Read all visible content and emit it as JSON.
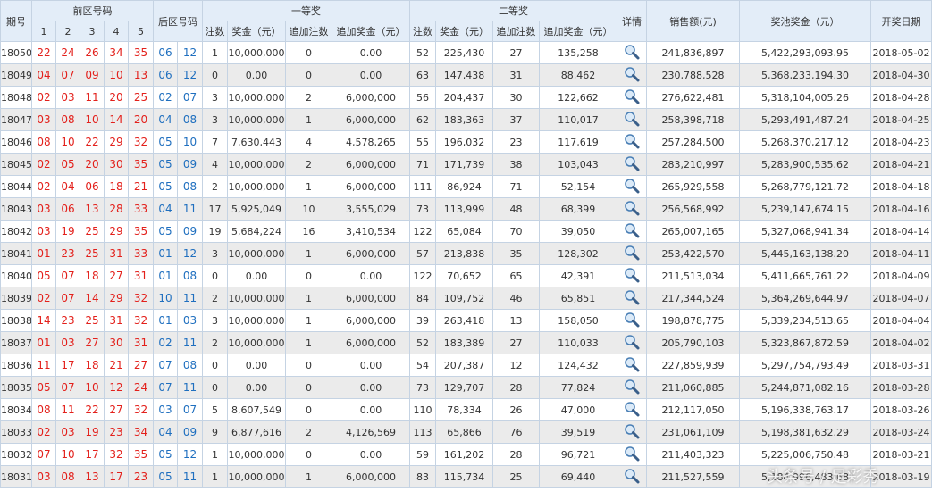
{
  "header": {
    "issue": "期号",
    "front": "前区号码",
    "front_cols": [
      "1",
      "2",
      "3",
      "4",
      "5"
    ],
    "back": "后区号码",
    "first": "一等奖",
    "second": "二等奖",
    "sub": [
      "注数",
      "奖金（元）",
      "追加注数",
      "追加奖金（元）"
    ],
    "detail": "详情",
    "sales": "销售额(元)",
    "pool": "奖池奖金（元）",
    "date": "开奖日期"
  },
  "rows": [
    {
      "issue": "18050",
      "front": [
        "22",
        "24",
        "26",
        "34",
        "35"
      ],
      "back": [
        "06",
        "12"
      ],
      "first": [
        "1",
        "10,000,000",
        "0",
        "0.00"
      ],
      "second": [
        "52",
        "225,430",
        "27",
        "135,258"
      ],
      "sales": "241,836,897",
      "pool": "5,422,293,093.95",
      "date": "2018-05-02"
    },
    {
      "issue": "18049",
      "front": [
        "04",
        "07",
        "09",
        "10",
        "13"
      ],
      "back": [
        "06",
        "12"
      ],
      "first": [
        "0",
        "0.00",
        "0",
        "0.00"
      ],
      "second": [
        "63",
        "147,438",
        "31",
        "88,462"
      ],
      "sales": "230,788,528",
      "pool": "5,368,233,194.30",
      "date": "2018-04-30"
    },
    {
      "issue": "18048",
      "front": [
        "02",
        "03",
        "11",
        "20",
        "25"
      ],
      "back": [
        "02",
        "07"
      ],
      "first": [
        "3",
        "10,000,000",
        "2",
        "6,000,000"
      ],
      "second": [
        "56",
        "204,437",
        "30",
        "122,662"
      ],
      "sales": "276,622,481",
      "pool": "5,318,104,005.26",
      "date": "2018-04-28"
    },
    {
      "issue": "18047",
      "front": [
        "03",
        "08",
        "10",
        "14",
        "20"
      ],
      "back": [
        "04",
        "08"
      ],
      "first": [
        "3",
        "10,000,000",
        "1",
        "6,000,000"
      ],
      "second": [
        "62",
        "183,363",
        "37",
        "110,017"
      ],
      "sales": "258,398,718",
      "pool": "5,293,491,487.24",
      "date": "2018-04-25"
    },
    {
      "issue": "18046",
      "front": [
        "08",
        "10",
        "22",
        "29",
        "32"
      ],
      "back": [
        "05",
        "10"
      ],
      "first": [
        "7",
        "7,630,443",
        "4",
        "4,578,265"
      ],
      "second": [
        "55",
        "196,032",
        "23",
        "117,619"
      ],
      "sales": "257,284,500",
      "pool": "5,268,370,217.12",
      "date": "2018-04-23"
    },
    {
      "issue": "18045",
      "front": [
        "02",
        "05",
        "20",
        "30",
        "35"
      ],
      "back": [
        "05",
        "09"
      ],
      "first": [
        "4",
        "10,000,000",
        "2",
        "6,000,000"
      ],
      "second": [
        "71",
        "171,739",
        "38",
        "103,043"
      ],
      "sales": "283,210,997",
      "pool": "5,283,900,535.62",
      "date": "2018-04-21"
    },
    {
      "issue": "18044",
      "front": [
        "02",
        "04",
        "06",
        "18",
        "21"
      ],
      "back": [
        "05",
        "08"
      ],
      "first": [
        "2",
        "10,000,000",
        "1",
        "6,000,000"
      ],
      "second": [
        "111",
        "86,924",
        "71",
        "52,154"
      ],
      "sales": "265,929,558",
      "pool": "5,268,779,121.72",
      "date": "2018-04-18"
    },
    {
      "issue": "18043",
      "front": [
        "03",
        "06",
        "13",
        "28",
        "33"
      ],
      "back": [
        "04",
        "11"
      ],
      "first": [
        "17",
        "5,925,049",
        "10",
        "3,555,029"
      ],
      "second": [
        "73",
        "113,999",
        "48",
        "68,399"
      ],
      "sales": "256,568,992",
      "pool": "5,239,147,674.15",
      "date": "2018-04-16"
    },
    {
      "issue": "18042",
      "front": [
        "03",
        "19",
        "25",
        "29",
        "35"
      ],
      "back": [
        "05",
        "09"
      ],
      "first": [
        "19",
        "5,684,224",
        "16",
        "3,410,534"
      ],
      "second": [
        "122",
        "65,084",
        "70",
        "39,050"
      ],
      "sales": "265,007,165",
      "pool": "5,327,068,941.34",
      "date": "2018-04-14"
    },
    {
      "issue": "18041",
      "front": [
        "01",
        "23",
        "25",
        "31",
        "33"
      ],
      "back": [
        "01",
        "12"
      ],
      "first": [
        "3",
        "10,000,000",
        "1",
        "6,000,000"
      ],
      "second": [
        "57",
        "213,838",
        "35",
        "128,302"
      ],
      "sales": "253,422,570",
      "pool": "5,445,163,138.20",
      "date": "2018-04-11"
    },
    {
      "issue": "18040",
      "front": [
        "05",
        "07",
        "18",
        "27",
        "31"
      ],
      "back": [
        "01",
        "08"
      ],
      "first": [
        "0",
        "0.00",
        "0",
        "0.00"
      ],
      "second": [
        "122",
        "70,652",
        "65",
        "42,391"
      ],
      "sales": "211,513,034",
      "pool": "5,411,665,761.22",
      "date": "2018-04-09"
    },
    {
      "issue": "18039",
      "front": [
        "02",
        "07",
        "14",
        "29",
        "32"
      ],
      "back": [
        "10",
        "11"
      ],
      "first": [
        "2",
        "10,000,000",
        "1",
        "6,000,000"
      ],
      "second": [
        "84",
        "109,752",
        "46",
        "65,851"
      ],
      "sales": "217,344,524",
      "pool": "5,364,269,644.97",
      "date": "2018-04-07"
    },
    {
      "issue": "18038",
      "front": [
        "14",
        "23",
        "25",
        "31",
        "32"
      ],
      "back": [
        "01",
        "03"
      ],
      "first": [
        "3",
        "10,000,000",
        "1",
        "6,000,000"
      ],
      "second": [
        "39",
        "263,418",
        "13",
        "158,050"
      ],
      "sales": "198,878,775",
      "pool": "5,339,234,513.65",
      "date": "2018-04-04"
    },
    {
      "issue": "18037",
      "front": [
        "01",
        "03",
        "27",
        "30",
        "31"
      ],
      "back": [
        "02",
        "11"
      ],
      "first": [
        "2",
        "10,000,000",
        "1",
        "6,000,000"
      ],
      "second": [
        "52",
        "183,389",
        "27",
        "110,033"
      ],
      "sales": "205,790,103",
      "pool": "5,323,867,872.59",
      "date": "2018-04-02"
    },
    {
      "issue": "18036",
      "front": [
        "11",
        "17",
        "18",
        "21",
        "27"
      ],
      "back": [
        "07",
        "08"
      ],
      "first": [
        "0",
        "0.00",
        "0",
        "0.00"
      ],
      "second": [
        "54",
        "207,387",
        "12",
        "124,432"
      ],
      "sales": "227,859,939",
      "pool": "5,297,754,793.49",
      "date": "2018-03-31"
    },
    {
      "issue": "18035",
      "front": [
        "05",
        "07",
        "10",
        "12",
        "24"
      ],
      "back": [
        "07",
        "11"
      ],
      "first": [
        "0",
        "0.00",
        "0",
        "0.00"
      ],
      "second": [
        "73",
        "129,707",
        "28",
        "77,824"
      ],
      "sales": "211,060,885",
      "pool": "5,244,871,082.16",
      "date": "2018-03-28"
    },
    {
      "issue": "18034",
      "front": [
        "08",
        "11",
        "22",
        "27",
        "32"
      ],
      "back": [
        "03",
        "07"
      ],
      "first": [
        "5",
        "8,607,549",
        "0",
        "0.00"
      ],
      "second": [
        "110",
        "78,334",
        "26",
        "47,000"
      ],
      "sales": "212,117,050",
      "pool": "5,196,338,763.17",
      "date": "2018-03-26"
    },
    {
      "issue": "18033",
      "front": [
        "02",
        "03",
        "19",
        "23",
        "34"
      ],
      "back": [
        "04",
        "09"
      ],
      "first": [
        "9",
        "6,877,616",
        "2",
        "4,126,569"
      ],
      "second": [
        "113",
        "65,866",
        "76",
        "39,519"
      ],
      "sales": "231,061,109",
      "pool": "5,198,381,632.29",
      "date": "2018-03-24"
    },
    {
      "issue": "18032",
      "front": [
        "07",
        "10",
        "17",
        "32",
        "35"
      ],
      "back": [
        "05",
        "12"
      ],
      "first": [
        "1",
        "10,000,000",
        "0",
        "0.00"
      ],
      "second": [
        "59",
        "161,202",
        "28",
        "96,721"
      ],
      "sales": "211,403,323",
      "pool": "5,225,006,750.48",
      "date": "2018-03-21"
    },
    {
      "issue": "18031",
      "front": [
        "03",
        "08",
        "13",
        "17",
        "23"
      ],
      "back": [
        "05",
        "11"
      ],
      "first": [
        "1",
        "10,000,000",
        "1",
        "6,000,000"
      ],
      "second": [
        "83",
        "115,734",
        "25",
        "69,440"
      ],
      "sales": "211,527,559",
      "pool": "5,184,996,483.68",
      "date": "2018-03-19"
    }
  ],
  "watermark": "头条号 / 足彩秀"
}
